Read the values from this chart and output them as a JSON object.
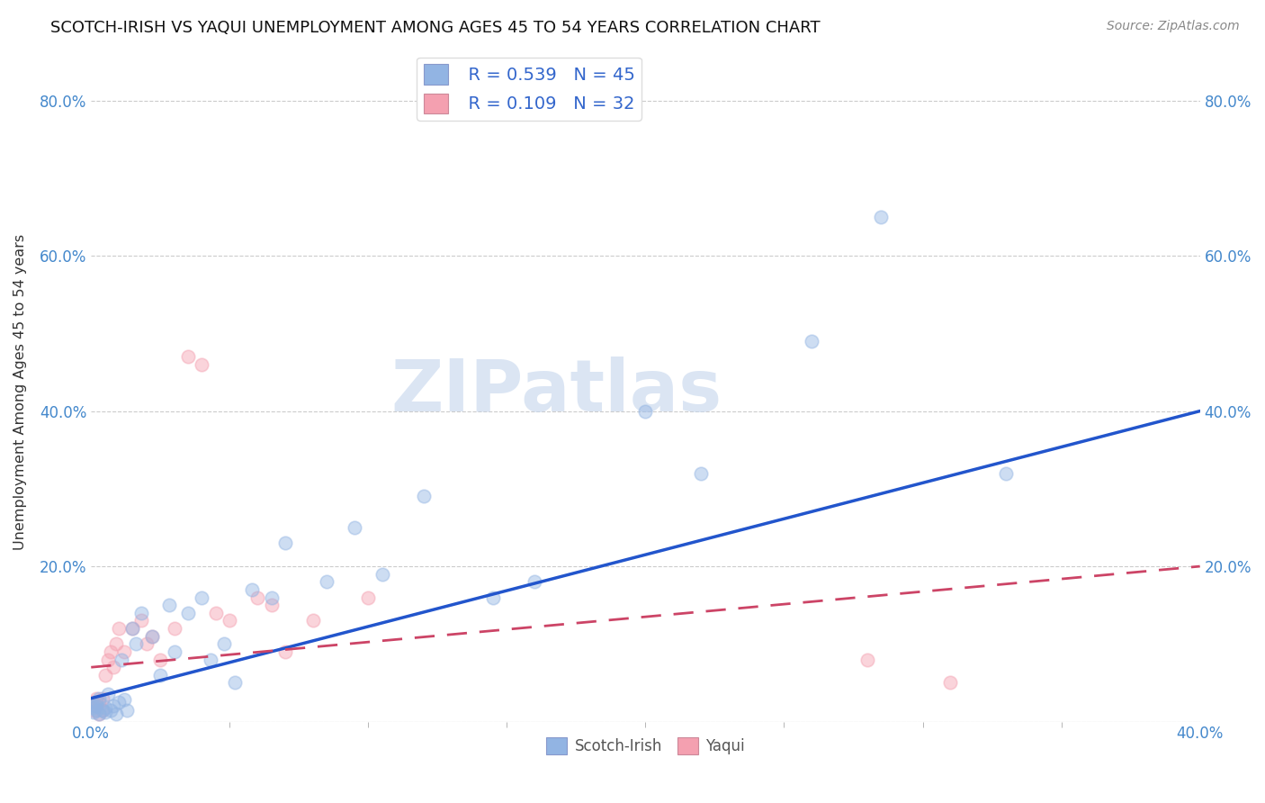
{
  "title": "SCOTCH-IRISH VS YAQUI UNEMPLOYMENT AMONG AGES 45 TO 54 YEARS CORRELATION CHART",
  "source": "Source: ZipAtlas.com",
  "xlabel": "",
  "ylabel": "Unemployment Among Ages 45 to 54 years",
  "xlim": [
    0.0,
    0.4
  ],
  "ylim": [
    0.0,
    0.85
  ],
  "xticks": [
    0.0,
    0.4
  ],
  "yticks": [
    0.0,
    0.2,
    0.4,
    0.6,
    0.8
  ],
  "xtick_labels": [
    "0.0%",
    "40.0%"
  ],
  "ytick_labels_left": [
    "",
    "20.0%",
    "40.0%",
    "60.0%",
    "80.0%"
  ],
  "ytick_labels_right": [
    "",
    "20.0%",
    "40.0%",
    "60.0%",
    "80.0%"
  ],
  "grid_color": "#cccccc",
  "background_color": "#ffffff",
  "scotch_irish_color": "#92b4e3",
  "yaqui_color": "#f4a0b0",
  "scotch_irish_line_color": "#2255cc",
  "yaqui_line_color": "#cc4466",
  "legend_R_scotch": "R = 0.539",
  "legend_N_scotch": "N = 45",
  "legend_R_yaqui": "R = 0.109",
  "legend_N_yaqui": "N = 32",
  "si_line_x0": 0.0,
  "si_line_y0": 0.03,
  "si_line_x1": 0.4,
  "si_line_y1": 0.4,
  "yq_line_x0": 0.0,
  "yq_line_y0": 0.07,
  "yq_line_x1": 0.4,
  "yq_line_y1": 0.2,
  "scotch_irish_x": [
    0.001,
    0.001,
    0.001,
    0.002,
    0.002,
    0.002,
    0.003,
    0.003,
    0.004,
    0.005,
    0.005,
    0.006,
    0.007,
    0.008,
    0.009,
    0.01,
    0.011,
    0.012,
    0.013,
    0.015,
    0.016,
    0.018,
    0.022,
    0.025,
    0.028,
    0.03,
    0.035,
    0.04,
    0.043,
    0.048,
    0.052,
    0.058,
    0.065,
    0.07,
    0.085,
    0.095,
    0.105,
    0.12,
    0.145,
    0.16,
    0.2,
    0.22,
    0.26,
    0.285,
    0.33
  ],
  "scotch_irish_y": [
    0.02,
    0.018,
    0.012,
    0.015,
    0.02,
    0.025,
    0.01,
    0.03,
    0.015,
    0.018,
    0.012,
    0.035,
    0.015,
    0.02,
    0.01,
    0.025,
    0.08,
    0.028,
    0.015,
    0.12,
    0.1,
    0.14,
    0.11,
    0.06,
    0.15,
    0.09,
    0.14,
    0.16,
    0.08,
    0.1,
    0.05,
    0.17,
    0.16,
    0.23,
    0.18,
    0.25,
    0.19,
    0.29,
    0.16,
    0.18,
    0.4,
    0.32,
    0.49,
    0.65,
    0.32
  ],
  "yaqui_x": [
    0.001,
    0.001,
    0.002,
    0.002,
    0.003,
    0.003,
    0.004,
    0.004,
    0.005,
    0.006,
    0.007,
    0.008,
    0.009,
    0.01,
    0.012,
    0.015,
    0.018,
    0.02,
    0.022,
    0.025,
    0.03,
    0.035,
    0.04,
    0.045,
    0.05,
    0.06,
    0.065,
    0.07,
    0.08,
    0.1,
    0.28,
    0.31
  ],
  "yaqui_y": [
    0.015,
    0.025,
    0.02,
    0.03,
    0.01,
    0.025,
    0.015,
    0.03,
    0.06,
    0.08,
    0.09,
    0.07,
    0.1,
    0.12,
    0.09,
    0.12,
    0.13,
    0.1,
    0.11,
    0.08,
    0.12,
    0.47,
    0.46,
    0.14,
    0.13,
    0.16,
    0.15,
    0.09,
    0.13,
    0.16,
    0.08,
    0.05
  ],
  "watermark": "ZIPatlas",
  "marker_size": 110,
  "marker_alpha": 0.45,
  "marker_linewidth": 1.2
}
